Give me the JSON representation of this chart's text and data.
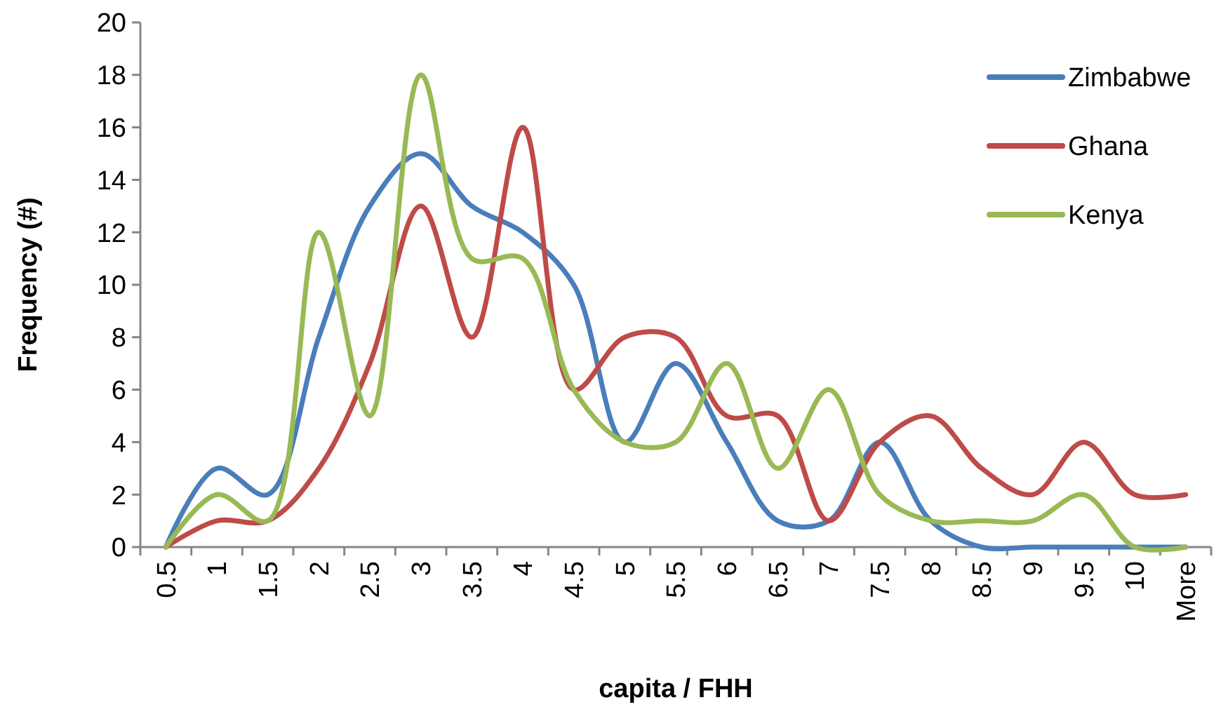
{
  "chart_data": {
    "type": "line",
    "xlabel": "capita  / FHH",
    "ylabel": "Frequency (#)",
    "categories": [
      "0.5",
      "1",
      "1.5",
      "2",
      "2.5",
      "3",
      "3.5",
      "4",
      "4.5",
      "5",
      "5.5",
      "6",
      "6.5",
      "7",
      "7.5",
      "8",
      "8.5",
      "9",
      "9.5",
      "10",
      "More"
    ],
    "series": [
      {
        "name": "Zimbabwe",
        "color": "#4a7ebb",
        "values": [
          0,
          3,
          2,
          8,
          13,
          15,
          13,
          12,
          10,
          4,
          7,
          4,
          1,
          1,
          4,
          1,
          0,
          0,
          0,
          0,
          0
        ]
      },
      {
        "name": "Ghana",
        "color": "#be4b48",
        "values": [
          0,
          1,
          1,
          3,
          7,
          13,
          8,
          16,
          6,
          8,
          8,
          5,
          5,
          1,
          4,
          5,
          3,
          2,
          4,
          2,
          2
        ]
      },
      {
        "name": "Kenya",
        "color": "#98b954",
        "values": [
          0,
          2,
          1,
          12,
          5,
          18,
          11,
          11,
          6,
          4,
          4,
          7,
          3,
          6,
          2,
          1,
          1,
          1,
          2,
          0,
          0
        ]
      }
    ],
    "ylim": [
      0,
      20
    ],
    "yticks": [
      0,
      2,
      4,
      6,
      8,
      10,
      12,
      14,
      16,
      18,
      20
    ],
    "legend": "top right",
    "grid": false,
    "marker": "none",
    "line_style": "solid"
  }
}
